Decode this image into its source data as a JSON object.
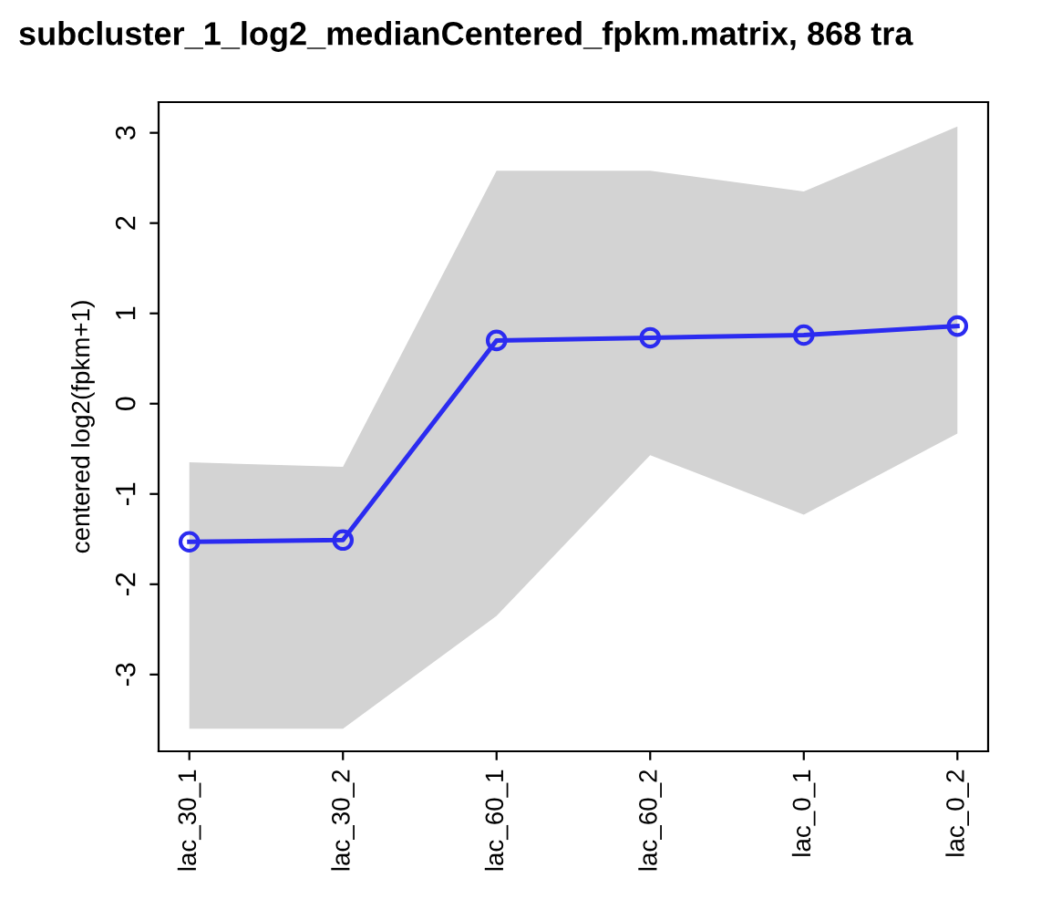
{
  "chart_data": {
    "type": "line",
    "title": "subcluster_1_log2_medianCentered_fpkm.matrix, 868 tra",
    "ylabel": "centered log2(fpkm+1)",
    "categories": [
      "lac_30_1",
      "lac_30_2",
      "lac_60_1",
      "lac_60_2",
      "lac_0_1",
      "lac_0_2"
    ],
    "series": [
      {
        "color": "#2b2bf0",
        "values": [
          -1.53,
          -1.51,
          0.7,
          0.73,
          0.76,
          0.86
        ],
        "lower": [
          -3.6,
          -3.6,
          -2.35,
          -0.57,
          -1.23,
          -0.33
        ],
        "upper": [
          -0.65,
          -0.7,
          2.58,
          2.58,
          2.35,
          3.07
        ]
      }
    ],
    "ylim": [
      -3.85,
      3.34
    ],
    "yticks": [
      -3,
      -2,
      -1,
      0,
      1,
      2,
      3
    ],
    "marker": "circle",
    "line_style": "solid",
    "grid": false
  }
}
